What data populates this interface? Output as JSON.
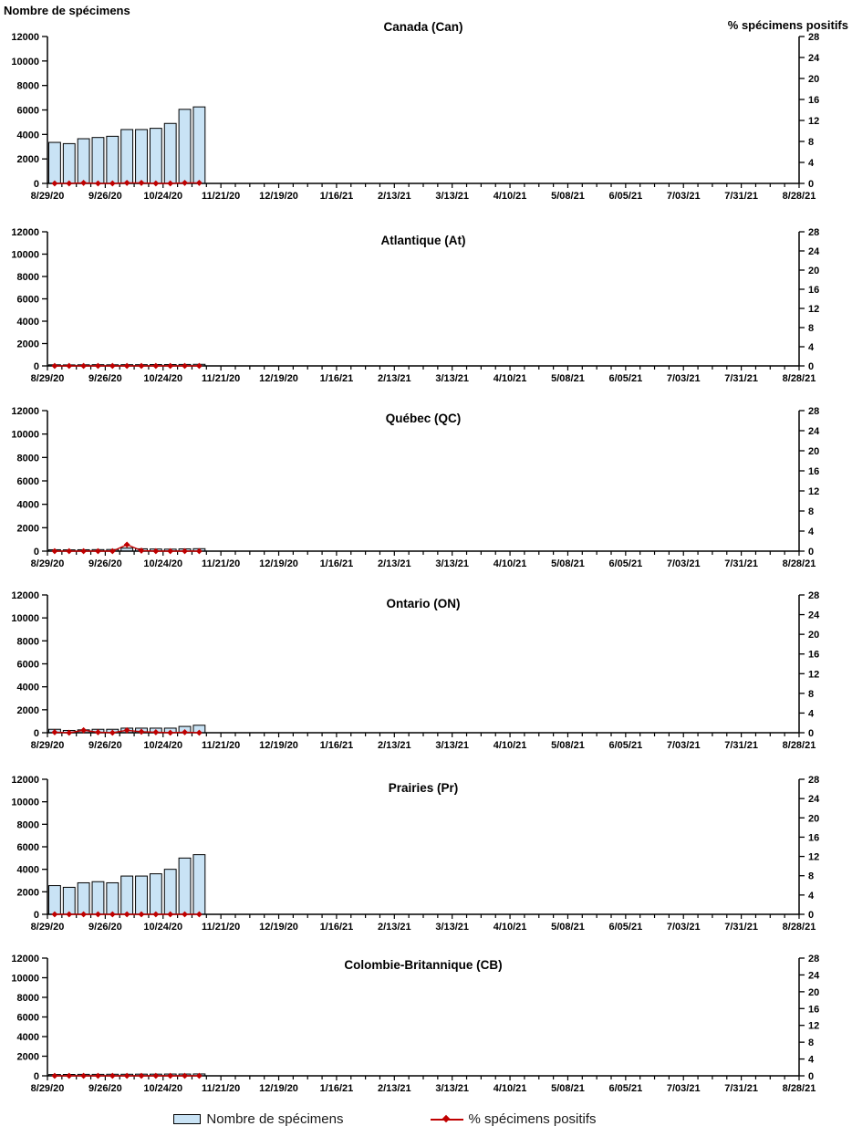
{
  "chart_data": {
    "type": "bar+line",
    "left_axis": {
      "title": "Nombre de spécimens",
      "min": 0,
      "max": 12000,
      "step": 2000,
      "ticks": [
        0,
        2000,
        4000,
        6000,
        8000,
        10000,
        12000
      ]
    },
    "right_axis": {
      "title": "% spécimens positifs",
      "min": 0,
      "max": 28,
      "step": 4,
      "ticks": [
        0,
        4,
        8,
        12,
        16,
        20,
        24,
        28
      ]
    },
    "x_axis": {
      "major_labels": [
        "8/29/20",
        "9/26/20",
        "10/24/20",
        "11/21/20",
        "12/19/20",
        "1/16/21",
        "2/13/21",
        "3/13/21",
        "4/10/21",
        "5/08/21",
        "6/05/21",
        "7/03/21",
        "7/31/21",
        "8/28/21"
      ],
      "weeks_total": 52,
      "weeks_per_major": 4,
      "grid": "off"
    },
    "series_names": [
      "Nombre de spécimens",
      "% spécimens positifs"
    ],
    "panels": [
      {
        "title": "Canada (Can)",
        "nombre": [
          3350,
          3250,
          3650,
          3750,
          3850,
          4400,
          4400,
          4500,
          4900,
          6050,
          6250
        ],
        "pct": [
          0,
          0,
          0.1,
          0,
          0,
          0.1,
          0.1,
          0,
          0,
          0.1,
          0.1
        ]
      },
      {
        "title": "Atlantique (At)",
        "nombre": [
          100,
          90,
          100,
          110,
          100,
          110,
          110,
          120,
          120,
          130,
          140
        ],
        "pct": [
          0,
          0,
          0,
          0,
          0,
          0,
          0,
          0,
          0,
          0,
          0
        ]
      },
      {
        "title": "Québec (QC)",
        "nombre": [
          120,
          110,
          120,
          130,
          140,
          260,
          200,
          180,
          170,
          190,
          210
        ],
        "pct": [
          0,
          0,
          0,
          0,
          0,
          1.3,
          0.1,
          0,
          0,
          0,
          0
        ]
      },
      {
        "title": "Ontario (ON)",
        "nombre": [
          300,
          200,
          250,
          300,
          300,
          400,
          400,
          400,
          400,
          550,
          650
        ],
        "pct": [
          0.1,
          0,
          0.5,
          0.1,
          0,
          0.5,
          0.2,
          0.1,
          0,
          0.1,
          0
        ]
      },
      {
        "title": "Prairies (Pr)",
        "nombre": [
          2550,
          2400,
          2800,
          2900,
          2800,
          3400,
          3400,
          3600,
          4000,
          5000,
          5300
        ],
        "pct": [
          0,
          0,
          0,
          0,
          0,
          0,
          0,
          0,
          0,
          0,
          0
        ]
      },
      {
        "title": "Colombie-Britannique (CB)",
        "nombre": [
          130,
          140,
          150,
          150,
          160,
          160,
          170,
          170,
          180,
          180,
          190
        ],
        "pct": [
          0,
          0,
          0,
          0,
          0,
          0,
          0,
          0,
          0,
          0,
          0
        ]
      }
    ],
    "colors": {
      "bar_fill": "#C9E3F5",
      "bar_stroke": "#000000",
      "line": "#C00000",
      "marker": "#C00000",
      "axis": "#000000"
    }
  },
  "legend": {
    "items": [
      {
        "label": "Nombre de spécimens",
        "swatch": "bar"
      },
      {
        "label": "% spécimens positifs",
        "swatch": "line-diamond"
      }
    ]
  }
}
